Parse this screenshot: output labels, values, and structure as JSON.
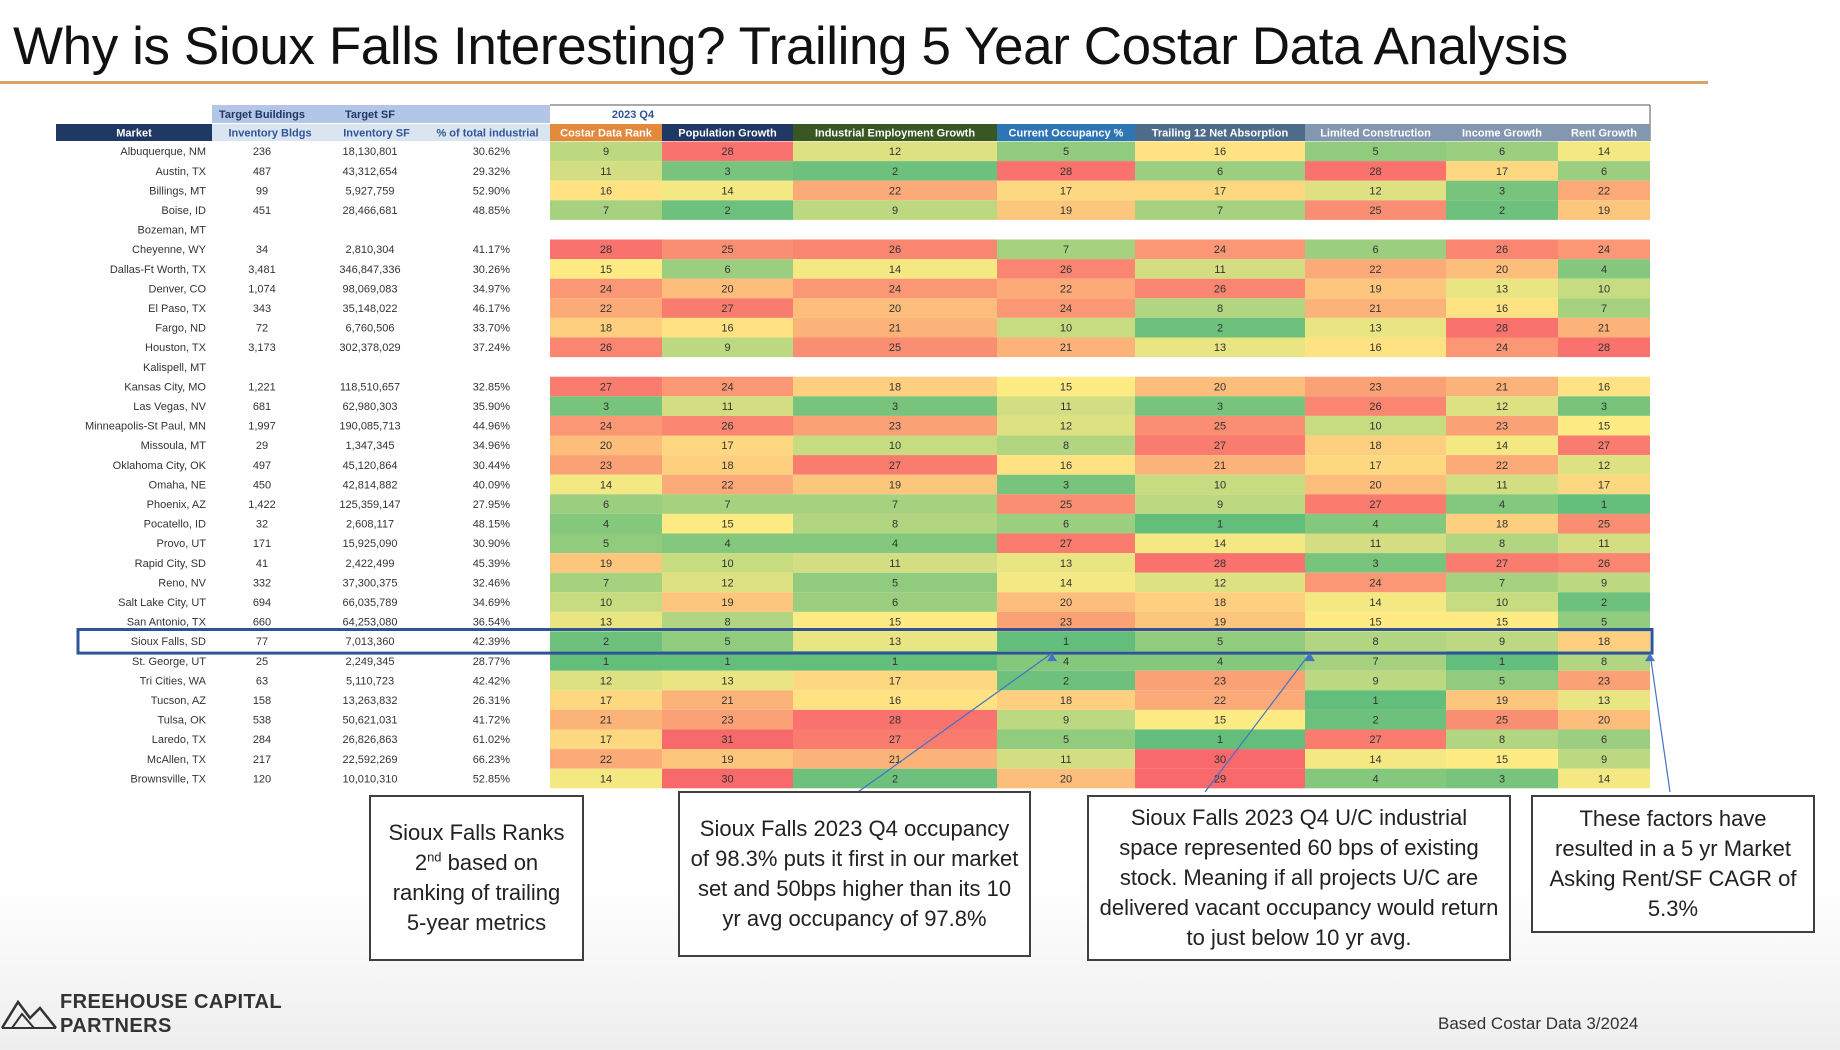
{
  "title": "Why is Sioux Falls Interesting? Trailing 5 Year Costar Data Analysis",
  "colors": {
    "accent_rule": "#d7a36a",
    "header_dark": "#1f3864",
    "header_light": "#b4c6e7",
    "highlight_box": "#2f5597",
    "good": "#63be7b",
    "mid": "#ffeb84",
    "bad": "#f8696b"
  },
  "table": {
    "group_headers": {
      "buildings": "Target Buildings",
      "sf": "Target SF",
      "period": "2023 Q4"
    },
    "columns": [
      "Market",
      "Inventory Bldgs",
      "Inventory SF",
      "% of total industrial",
      "Costar Data Rank",
      "Population Growth",
      "Industrial Employment Growth",
      "Current Occupancy %",
      "Trailing 12 Net Absorption",
      "Limited Construction",
      "Income Growth",
      "Rent Growth"
    ],
    "rows": [
      {
        "market": "Albuquerque, NM",
        "bldgs": "236",
        "sf": "18,130,801",
        "pct": "30.62%",
        "ranks": [
          9,
          28,
          12,
          5,
          16,
          5,
          6,
          14
        ]
      },
      {
        "market": "Austin, TX",
        "bldgs": "487",
        "sf": "43,312,654",
        "pct": "29.32%",
        "ranks": [
          11,
          3,
          2,
          28,
          6,
          28,
          17,
          6
        ]
      },
      {
        "market": "Billings, MT",
        "bldgs": "99",
        "sf": "5,927,759",
        "pct": "52.90%",
        "ranks": [
          16,
          14,
          22,
          17,
          17,
          12,
          3,
          22
        ]
      },
      {
        "market": "Boise, ID",
        "bldgs": "451",
        "sf": "28,466,681",
        "pct": "48.85%",
        "ranks": [
          7,
          2,
          9,
          19,
          7,
          25,
          2,
          19
        ]
      },
      {
        "market": "Bozeman, MT",
        "bldgs": "",
        "sf": "",
        "pct": "",
        "ranks": []
      },
      {
        "market": "Cheyenne, WY",
        "bldgs": "34",
        "sf": "2,810,304",
        "pct": "41.17%",
        "ranks": [
          28,
          25,
          26,
          7,
          24,
          6,
          26,
          24
        ]
      },
      {
        "market": "Dallas-Ft Worth, TX",
        "bldgs": "3,481",
        "sf": "346,847,336",
        "pct": "30.26%",
        "ranks": [
          15,
          6,
          14,
          26,
          11,
          22,
          20,
          4
        ]
      },
      {
        "market": "Denver, CO",
        "bldgs": "1,074",
        "sf": "98,069,083",
        "pct": "34.97%",
        "ranks": [
          24,
          20,
          24,
          22,
          26,
          19,
          13,
          10
        ]
      },
      {
        "market": "El Paso, TX",
        "bldgs": "343",
        "sf": "35,148,022",
        "pct": "46.17%",
        "ranks": [
          22,
          27,
          20,
          24,
          8,
          21,
          16,
          7
        ]
      },
      {
        "market": "Fargo, ND",
        "bldgs": "72",
        "sf": "6,760,506",
        "pct": "33.70%",
        "ranks": [
          18,
          16,
          21,
          10,
          2,
          13,
          28,
          21
        ]
      },
      {
        "market": "Houston, TX",
        "bldgs": "3,173",
        "sf": "302,378,029",
        "pct": "37.24%",
        "ranks": [
          26,
          9,
          25,
          21,
          13,
          16,
          24,
          28
        ]
      },
      {
        "market": "Kalispell, MT",
        "bldgs": "",
        "sf": "",
        "pct": "",
        "ranks": []
      },
      {
        "market": "Kansas City, MO",
        "bldgs": "1,221",
        "sf": "118,510,657",
        "pct": "32.85%",
        "ranks": [
          27,
          24,
          18,
          15,
          20,
          23,
          21,
          16
        ]
      },
      {
        "market": "Las Vegas, NV",
        "bldgs": "681",
        "sf": "62,980,303",
        "pct": "35.90%",
        "ranks": [
          3,
          11,
          3,
          11,
          3,
          26,
          12,
          3
        ]
      },
      {
        "market": "Minneapolis-St Paul, MN",
        "bldgs": "1,997",
        "sf": "190,085,713",
        "pct": "44.96%",
        "ranks": [
          24,
          26,
          23,
          12,
          25,
          10,
          23,
          15
        ]
      },
      {
        "market": "Missoula, MT",
        "bldgs": "29",
        "sf": "1,347,345",
        "pct": "34.96%",
        "ranks": [
          20,
          17,
          10,
          8,
          27,
          18,
          14,
          27
        ]
      },
      {
        "market": "Oklahoma City, OK",
        "bldgs": "497",
        "sf": "45,120,864",
        "pct": "30.44%",
        "ranks": [
          23,
          18,
          27,
          16,
          21,
          17,
          22,
          12
        ]
      },
      {
        "market": "Omaha, NE",
        "bldgs": "450",
        "sf": "42,814,882",
        "pct": "40.09%",
        "ranks": [
          14,
          22,
          19,
          3,
          10,
          20,
          11,
          17
        ]
      },
      {
        "market": "Phoenix, AZ",
        "bldgs": "1,422",
        "sf": "125,359,147",
        "pct": "27.95%",
        "ranks": [
          6,
          7,
          7,
          25,
          9,
          27,
          4,
          1
        ]
      },
      {
        "market": "Pocatello, ID",
        "bldgs": "32",
        "sf": "2,608,117",
        "pct": "48.15%",
        "ranks": [
          4,
          15,
          8,
          6,
          1,
          4,
          18,
          25
        ]
      },
      {
        "market": "Provo, UT",
        "bldgs": "171",
        "sf": "15,925,090",
        "pct": "30.90%",
        "ranks": [
          5,
          4,
          4,
          27,
          14,
          11,
          8,
          11
        ]
      },
      {
        "market": "Rapid City, SD",
        "bldgs": "41",
        "sf": "2,422,499",
        "pct": "45.39%",
        "ranks": [
          19,
          10,
          11,
          13,
          28,
          3,
          27,
          26
        ]
      },
      {
        "market": "Reno, NV",
        "bldgs": "332",
        "sf": "37,300,375",
        "pct": "32.46%",
        "ranks": [
          7,
          12,
          5,
          14,
          12,
          24,
          7,
          9
        ]
      },
      {
        "market": "Salt Lake City, UT",
        "bldgs": "694",
        "sf": "66,035,789",
        "pct": "34.69%",
        "ranks": [
          10,
          19,
          6,
          20,
          18,
          14,
          10,
          2
        ]
      },
      {
        "market": "San Antonio, TX",
        "bldgs": "660",
        "sf": "64,253,080",
        "pct": "36.54%",
        "ranks": [
          13,
          8,
          15,
          23,
          19,
          15,
          15,
          5
        ]
      },
      {
        "market": "Sioux Falls, SD",
        "bldgs": "77",
        "sf": "7,013,360",
        "pct": "42.39%",
        "ranks": [
          2,
          5,
          13,
          1,
          5,
          8,
          9,
          18
        ]
      },
      {
        "market": "St. George, UT",
        "bldgs": "25",
        "sf": "2,249,345",
        "pct": "28.77%",
        "ranks": [
          1,
          1,
          1,
          4,
          4,
          7,
          1,
          8
        ]
      },
      {
        "market": "Tri Cities, WA",
        "bldgs": "63",
        "sf": "5,110,723",
        "pct": "42.42%",
        "ranks": [
          12,
          13,
          17,
          2,
          23,
          9,
          5,
          23
        ]
      },
      {
        "market": "Tucson, AZ",
        "bldgs": "158",
        "sf": "13,263,832",
        "pct": "26.31%",
        "ranks": [
          17,
          21,
          16,
          18,
          22,
          1,
          19,
          13
        ]
      },
      {
        "market": "Tulsa, OK",
        "bldgs": "538",
        "sf": "50,621,031",
        "pct": "41.72%",
        "ranks": [
          21,
          23,
          28,
          9,
          15,
          2,
          25,
          20
        ]
      },
      {
        "market": "Laredo, TX",
        "bldgs": "284",
        "sf": "26,826,863",
        "pct": "61.02%",
        "ranks": [
          17,
          31,
          27,
          5,
          1,
          27,
          8,
          6
        ]
      },
      {
        "market": "McAllen, TX",
        "bldgs": "217",
        "sf": "22,592,269",
        "pct": "66.23%",
        "ranks": [
          22,
          19,
          21,
          11,
          30,
          14,
          15,
          9
        ]
      },
      {
        "market": "Brownsville, TX",
        "bldgs": "120",
        "sf": "10,010,310",
        "pct": "52.85%",
        "ranks": [
          14,
          30,
          2,
          20,
          29,
          4,
          3,
          14
        ]
      }
    ]
  },
  "callouts": {
    "c1": {
      "pre": "Sioux Falls Ranks 2",
      "sup": "nd",
      "post": " based on ranking of trailing 5-year metrics"
    },
    "c2": "Sioux Falls 2023 Q4 occupancy of 98.3% puts it first in our market set and 50bps higher than its 10 yr avg occupancy of 97.8%",
    "c3": "Sioux Falls 2023 Q4 U/C industrial space represented 60 bps of existing stock. Meaning if all projects U/C are delivered vacant occupancy would return to just below 10 yr avg.",
    "c4": "These factors have resulted in a 5 yr Market Asking Rent/SF CAGR of 5.3%"
  },
  "logo": {
    "line1": "FREEHOUSE CAPITAL",
    "line2": "PARTNERS",
    "icon": "mountain-icon"
  },
  "footnote": "Based Costar Data 3/2024"
}
